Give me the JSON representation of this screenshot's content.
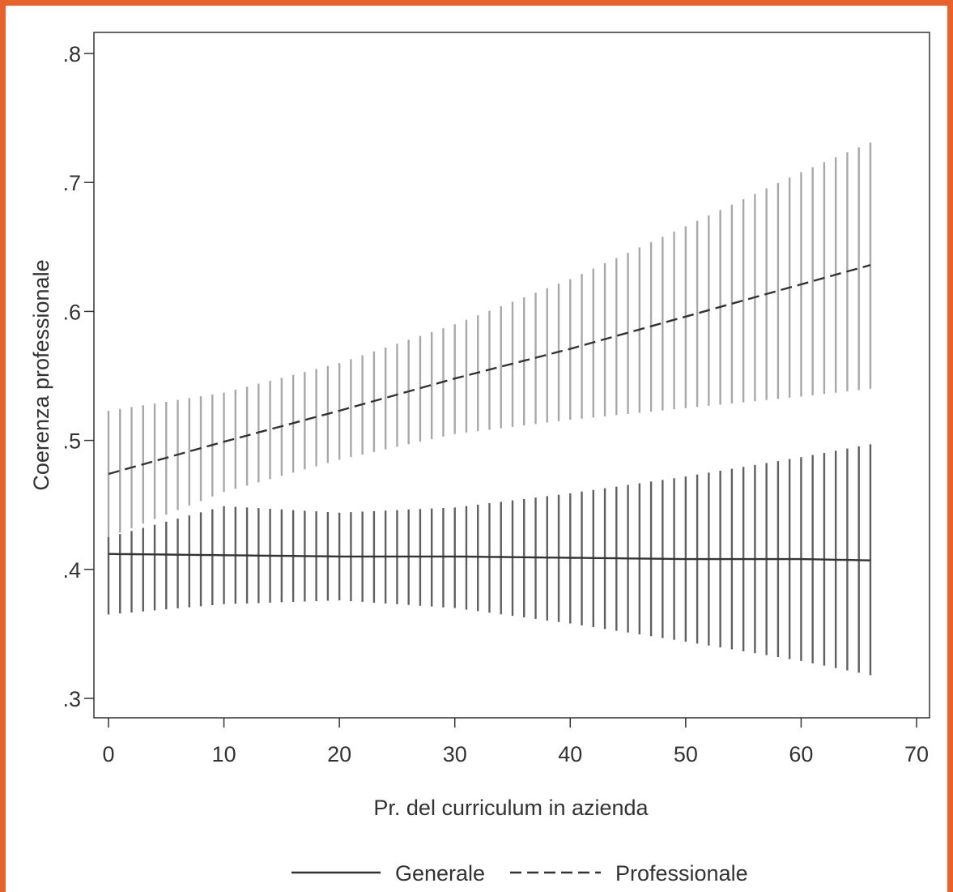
{
  "chart_data": {
    "type": "line",
    "xlabel": "Pr. del curriculum in azienda",
    "ylabel": "Coerenza professionale",
    "xlim": [
      0,
      70
    ],
    "ylim": [
      0.3,
      0.8
    ],
    "x_ticks": [
      0,
      10,
      20,
      30,
      40,
      50,
      60,
      70
    ],
    "x_tick_labels": [
      "0",
      "10",
      "20",
      "30",
      "40",
      "50",
      "60",
      "70"
    ],
    "y_ticks": [
      0.3,
      0.4,
      0.5,
      0.6,
      0.7,
      0.8
    ],
    "y_tick_labels": [
      ".3",
      ".4",
      ".5",
      ".6",
      ".7",
      ".8"
    ],
    "grid": false,
    "legend_position": "bottom",
    "ci_step": 1,
    "series": [
      {
        "name": "Generale",
        "line_style": "solid",
        "line_color": "#333333",
        "ci_color": "#606060",
        "x": [
          0,
          10,
          20,
          30,
          40,
          50,
          60,
          66
        ],
        "y": [
          0.412,
          0.411,
          0.41,
          0.41,
          0.409,
          0.408,
          0.408,
          0.407
        ],
        "ci_lower": [
          0.365,
          0.373,
          0.376,
          0.37,
          0.358,
          0.344,
          0.329,
          0.318
        ],
        "ci_upper": [
          0.425,
          0.449,
          0.444,
          0.448,
          0.459,
          0.472,
          0.487,
          0.497
        ]
      },
      {
        "name": "Professionale",
        "line_style": "dashed",
        "line_color": "#333333",
        "ci_color": "#a8a8a8",
        "x": [
          0,
          10,
          20,
          30,
          40,
          50,
          60,
          66
        ],
        "y": [
          0.474,
          0.499,
          0.523,
          0.548,
          0.571,
          0.596,
          0.621,
          0.636
        ],
        "ci_lower": [
          0.425,
          0.46,
          0.485,
          0.505,
          0.516,
          0.525,
          0.534,
          0.54
        ],
        "ci_upper": [
          0.523,
          0.537,
          0.56,
          0.59,
          0.625,
          0.666,
          0.708,
          0.731
        ]
      }
    ]
  }
}
